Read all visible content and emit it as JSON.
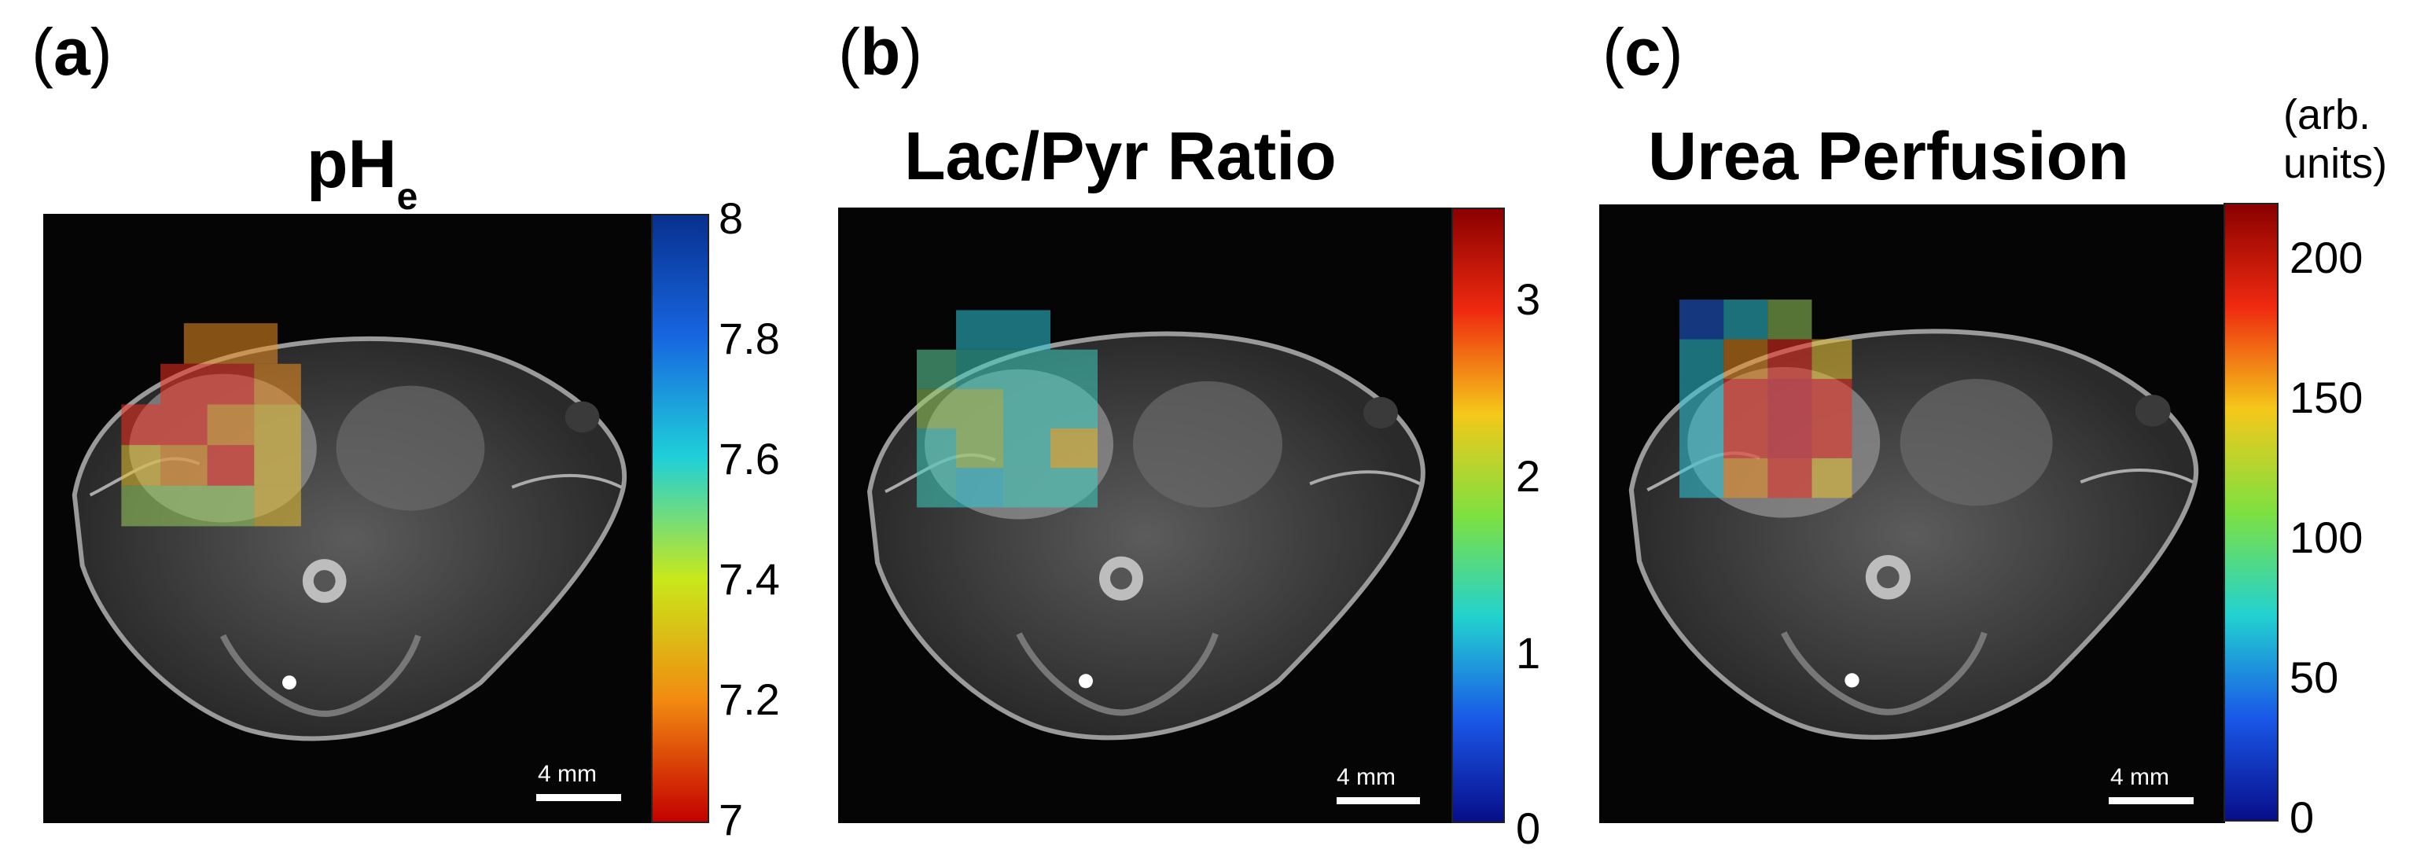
{
  "panels": [
    {
      "letter": "a",
      "title_main": "pH",
      "title_sub": "e",
      "colorbar_ticks": [
        "8",
        "7.8",
        "7.6",
        "7.4",
        "7.2",
        "7"
      ],
      "colorbar_colors": [
        "#08308f",
        "#1766e0",
        "#1fd0d8",
        "#c8e81a",
        "#f28a10",
        "#c40000"
      ],
      "scalebar_label": "4 mm"
    },
    {
      "letter": "b",
      "title_main": "Lac/Pyr Ratio",
      "colorbar_ticks": [
        "3",
        "2",
        "1",
        "0"
      ],
      "colorbar_colors": [
        "#8a0000",
        "#f02a10",
        "#f4c81a",
        "#7ee040",
        "#22d2cf",
        "#1a58e8",
        "#070e8a"
      ],
      "scalebar_label": "4 mm"
    },
    {
      "letter": "c",
      "title_main": "Urea Perfusion",
      "unit_label_line1": "(arb.",
      "unit_label_line2": "units)",
      "colorbar_ticks": [
        "200",
        "150",
        "100",
        "50",
        "0"
      ],
      "colorbar_colors": [
        "#8a0000",
        "#f02a10",
        "#f4c81a",
        "#7ee040",
        "#22d2cf",
        "#1a58e8",
        "#070e8a"
      ],
      "scalebar_label": "4 mm"
    }
  ]
}
